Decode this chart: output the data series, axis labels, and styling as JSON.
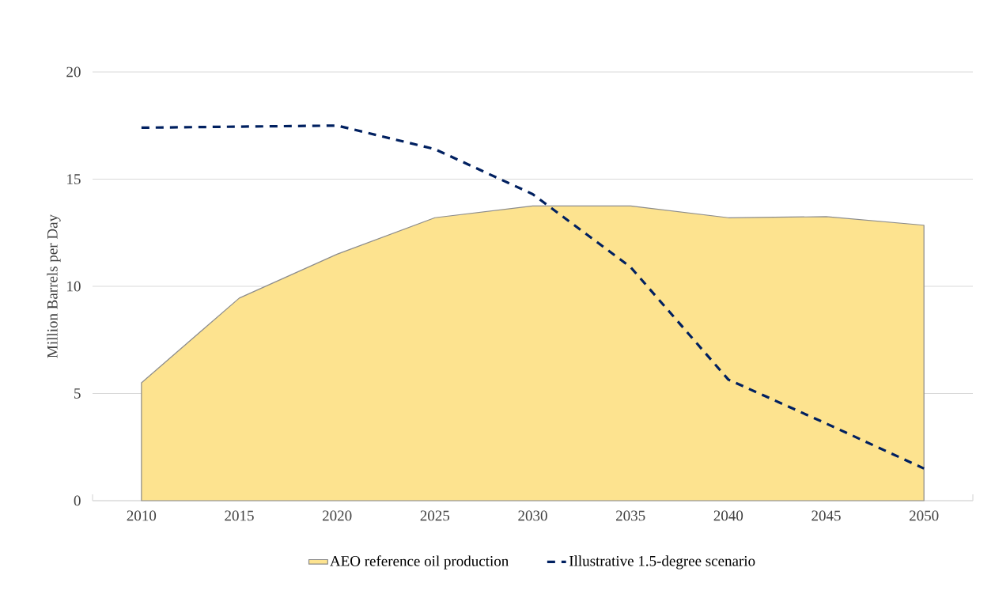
{
  "chart_data": {
    "type": "area",
    "ylabel": "Million Barrels per Day",
    "categories": [
      "2010",
      "2015",
      "2020",
      "2025",
      "2030",
      "2035",
      "2040",
      "2045",
      "2050"
    ],
    "series": [
      {
        "name": "AEO reference oil production",
        "color": "#fde38f",
        "values": [
          5.5,
          9.45,
          11.5,
          13.2,
          13.75,
          13.75,
          13.2,
          13.25,
          12.85
        ]
      },
      {
        "name": "Illustrative 1.5-degree scenario",
        "type": "line",
        "color": "#002060",
        "line_style": "dashed",
        "values": [
          17.4,
          17.45,
          17.5,
          16.4,
          14.3,
          10.9,
          5.65,
          3.6,
          1.5
        ]
      }
    ],
    "ylim": [
      0,
      20
    ],
    "yticks": [
      0,
      5,
      10,
      15,
      20
    ],
    "grid": "y",
    "legend": "bottom"
  }
}
